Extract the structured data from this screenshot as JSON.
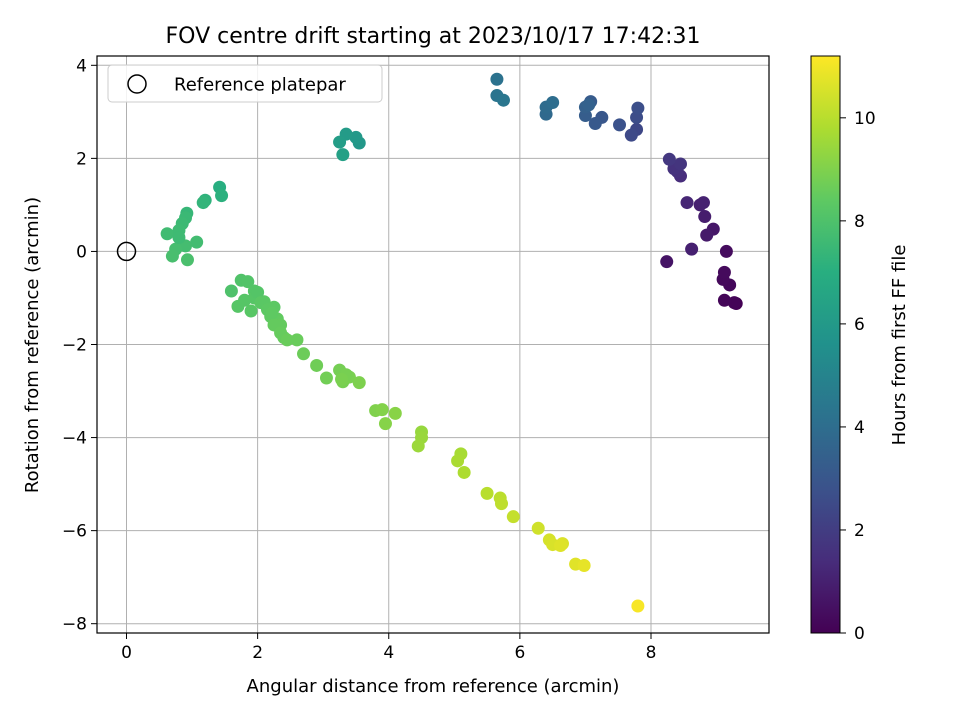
{
  "chart_data": {
    "type": "scatter",
    "title": "FOV centre drift starting at 2023/10/17 17:42:31",
    "xlabel": "Angular distance from reference (arcmin)",
    "ylabel": "Rotation from reference (arcmin)",
    "xlim": [
      -0.45,
      9.8
    ],
    "ylim": [
      -8.2,
      4.2
    ],
    "xticks": [
      0,
      2,
      4,
      6,
      8
    ],
    "yticks": [
      -8,
      -6,
      -4,
      -2,
      0,
      2,
      4
    ],
    "grid": true,
    "legend": {
      "placement": "top-left",
      "entries": [
        {
          "label": "Reference platepar",
          "marker": "open-circle"
        }
      ]
    },
    "reference_point": {
      "x": 0,
      "y": 0
    },
    "colorbar": {
      "label": "Hours from first FF file",
      "colormap": "viridis",
      "range": [
        0,
        11.2
      ],
      "ticks": [
        0,
        2,
        4,
        6,
        8,
        10
      ]
    },
    "points": [
      {
        "x": 9.3,
        "y": -1.12,
        "c": 0.0
      },
      {
        "x": 9.27,
        "y": -1.1,
        "c": 0.1
      },
      {
        "x": 9.12,
        "y": -1.05,
        "c": 0.15
      },
      {
        "x": 9.2,
        "y": -0.72,
        "c": 0.2
      },
      {
        "x": 9.1,
        "y": -0.6,
        "c": 0.25
      },
      {
        "x": 9.12,
        "y": -0.45,
        "c": 0.3
      },
      {
        "x": 9.15,
        "y": 0.0,
        "c": 0.35
      },
      {
        "x": 8.95,
        "y": 0.48,
        "c": 0.7
      },
      {
        "x": 8.85,
        "y": 0.35,
        "c": 0.8
      },
      {
        "x": 8.82,
        "y": 0.75,
        "c": 0.9
      },
      {
        "x": 8.75,
        "y": 1.0,
        "c": 1.0
      },
      {
        "x": 8.8,
        "y": 1.05,
        "c": 1.05
      },
      {
        "x": 8.55,
        "y": 1.05,
        "c": 1.2
      },
      {
        "x": 8.62,
        "y": 0.05,
        "c": 1.0
      },
      {
        "x": 8.24,
        "y": -0.22,
        "c": 0.6
      },
      {
        "x": 8.45,
        "y": 1.62,
        "c": 1.4
      },
      {
        "x": 8.4,
        "y": 1.72,
        "c": 1.5
      },
      {
        "x": 8.35,
        "y": 1.78,
        "c": 1.6
      },
      {
        "x": 8.45,
        "y": 1.88,
        "c": 1.7
      },
      {
        "x": 8.28,
        "y": 1.98,
        "c": 1.8
      },
      {
        "x": 7.78,
        "y": 2.62,
        "c": 2.4
      },
      {
        "x": 7.7,
        "y": 2.5,
        "c": 2.5
      },
      {
        "x": 7.78,
        "y": 2.88,
        "c": 2.6
      },
      {
        "x": 7.52,
        "y": 2.72,
        "c": 2.8
      },
      {
        "x": 7.8,
        "y": 3.08,
        "c": 2.7
      },
      {
        "x": 7.25,
        "y": 2.88,
        "c": 3.0
      },
      {
        "x": 7.15,
        "y": 2.75,
        "c": 3.1
      },
      {
        "x": 7.0,
        "y": 2.92,
        "c": 3.3
      },
      {
        "x": 7.0,
        "y": 3.1,
        "c": 3.4
      },
      {
        "x": 7.08,
        "y": 3.22,
        "c": 3.2
      },
      {
        "x": 7.05,
        "y": 3.15,
        "c": 3.5
      },
      {
        "x": 6.4,
        "y": 2.95,
        "c": 3.8
      },
      {
        "x": 6.4,
        "y": 3.1,
        "c": 3.9
      },
      {
        "x": 6.5,
        "y": 3.2,
        "c": 4.0
      },
      {
        "x": 5.65,
        "y": 3.35,
        "c": 4.3
      },
      {
        "x": 5.75,
        "y": 3.25,
        "c": 4.4
      },
      {
        "x": 5.65,
        "y": 3.7,
        "c": 4.2
      },
      {
        "x": 3.55,
        "y": 2.33,
        "c": 5.9
      },
      {
        "x": 3.5,
        "y": 2.45,
        "c": 6.0
      },
      {
        "x": 3.35,
        "y": 2.52,
        "c": 6.1
      },
      {
        "x": 3.25,
        "y": 2.35,
        "c": 6.2
      },
      {
        "x": 3.3,
        "y": 2.08,
        "c": 6.3
      },
      {
        "x": 1.42,
        "y": 1.38,
        "c": 7.0
      },
      {
        "x": 1.45,
        "y": 1.2,
        "c": 7.1
      },
      {
        "x": 1.2,
        "y": 1.1,
        "c": 7.2
      },
      {
        "x": 1.17,
        "y": 1.05,
        "c": 7.3
      },
      {
        "x": 0.92,
        "y": 0.82,
        "c": 7.4
      },
      {
        "x": 0.9,
        "y": 0.72,
        "c": 7.5
      },
      {
        "x": 0.85,
        "y": 0.6,
        "c": 7.55
      },
      {
        "x": 0.8,
        "y": 0.45,
        "c": 7.6
      },
      {
        "x": 0.62,
        "y": 0.38,
        "c": 7.65
      },
      {
        "x": 1.07,
        "y": 0.2,
        "c": 7.7
      },
      {
        "x": 0.9,
        "y": 0.12,
        "c": 7.75
      },
      {
        "x": 0.75,
        "y": 0.05,
        "c": 7.8
      },
      {
        "x": 0.7,
        "y": -0.1,
        "c": 7.85
      },
      {
        "x": 0.93,
        "y": -0.18,
        "c": 7.9
      },
      {
        "x": 0.8,
        "y": 0.3,
        "c": 7.6
      },
      {
        "x": 1.6,
        "y": -0.85,
        "c": 8.0
      },
      {
        "x": 1.75,
        "y": -0.62,
        "c": 8.05
      },
      {
        "x": 1.85,
        "y": -0.65,
        "c": 8.1
      },
      {
        "x": 1.95,
        "y": -0.85,
        "c": 8.15
      },
      {
        "x": 1.7,
        "y": -1.18,
        "c": 8.2
      },
      {
        "x": 1.8,
        "y": -1.05,
        "c": 8.2
      },
      {
        "x": 1.9,
        "y": -1.28,
        "c": 8.25
      },
      {
        "x": 2.1,
        "y": -1.08,
        "c": 8.3
      },
      {
        "x": 2.25,
        "y": -1.2,
        "c": 8.35
      },
      {
        "x": 2.2,
        "y": -1.4,
        "c": 8.4
      },
      {
        "x": 2.3,
        "y": -1.45,
        "c": 8.45
      },
      {
        "x": 2.35,
        "y": -1.58,
        "c": 8.5
      },
      {
        "x": 2.25,
        "y": -1.58,
        "c": 8.5
      },
      {
        "x": 2.4,
        "y": -1.85,
        "c": 8.55
      },
      {
        "x": 2.6,
        "y": -1.9,
        "c": 8.6
      },
      {
        "x": 2.7,
        "y": -2.2,
        "c": 8.65
      },
      {
        "x": 2.9,
        "y": -2.45,
        "c": 8.7
      },
      {
        "x": 3.05,
        "y": -2.72,
        "c": 8.75
      },
      {
        "x": 3.25,
        "y": -2.55,
        "c": 8.8
      },
      {
        "x": 3.3,
        "y": -2.8,
        "c": 8.85
      },
      {
        "x": 3.4,
        "y": -2.7,
        "c": 8.9
      },
      {
        "x": 3.55,
        "y": -2.82,
        "c": 8.95
      },
      {
        "x": 3.8,
        "y": -3.42,
        "c": 9.0
      },
      {
        "x": 3.9,
        "y": -3.4,
        "c": 9.05
      },
      {
        "x": 3.95,
        "y": -3.7,
        "c": 9.1
      },
      {
        "x": 4.1,
        "y": -3.48,
        "c": 9.15
      },
      {
        "x": 4.5,
        "y": -3.88,
        "c": 9.4
      },
      {
        "x": 4.5,
        "y": -4.0,
        "c": 9.45
      },
      {
        "x": 4.45,
        "y": -4.18,
        "c": 9.5
      },
      {
        "x": 5.1,
        "y": -4.35,
        "c": 9.7
      },
      {
        "x": 5.05,
        "y": -4.5,
        "c": 9.75
      },
      {
        "x": 5.15,
        "y": -4.75,
        "c": 9.8
      },
      {
        "x": 5.5,
        "y": -5.2,
        "c": 10.0
      },
      {
        "x": 5.7,
        "y": -5.3,
        "c": 10.05
      },
      {
        "x": 5.72,
        "y": -5.42,
        "c": 10.1
      },
      {
        "x": 5.9,
        "y": -5.7,
        "c": 10.2
      },
      {
        "x": 6.28,
        "y": -5.95,
        "c": 10.4
      },
      {
        "x": 6.45,
        "y": -6.2,
        "c": 10.5
      },
      {
        "x": 6.5,
        "y": -6.3,
        "c": 10.55
      },
      {
        "x": 6.65,
        "y": -6.28,
        "c": 10.6
      },
      {
        "x": 6.85,
        "y": -6.72,
        "c": 10.7
      },
      {
        "x": 6.98,
        "y": -6.75,
        "c": 10.8
      },
      {
        "x": 7.8,
        "y": -7.62,
        "c": 11.1
      },
      {
        "x": 1.95,
        "y": -1.0,
        "c": 8.2
      },
      {
        "x": 2.0,
        "y": -0.88,
        "c": 8.15
      },
      {
        "x": 2.05,
        "y": -1.1,
        "c": 8.3
      },
      {
        "x": 2.15,
        "y": -1.25,
        "c": 8.35
      },
      {
        "x": 2.22,
        "y": -1.32,
        "c": 8.4
      },
      {
        "x": 2.35,
        "y": -1.75,
        "c": 8.55
      },
      {
        "x": 2.45,
        "y": -1.9,
        "c": 8.6
      },
      {
        "x": 3.35,
        "y": -2.65,
        "c": 8.85
      },
      {
        "x": 3.28,
        "y": -2.75,
        "c": 8.9
      },
      {
        "x": 6.62,
        "y": -6.32,
        "c": 10.65
      }
    ]
  }
}
